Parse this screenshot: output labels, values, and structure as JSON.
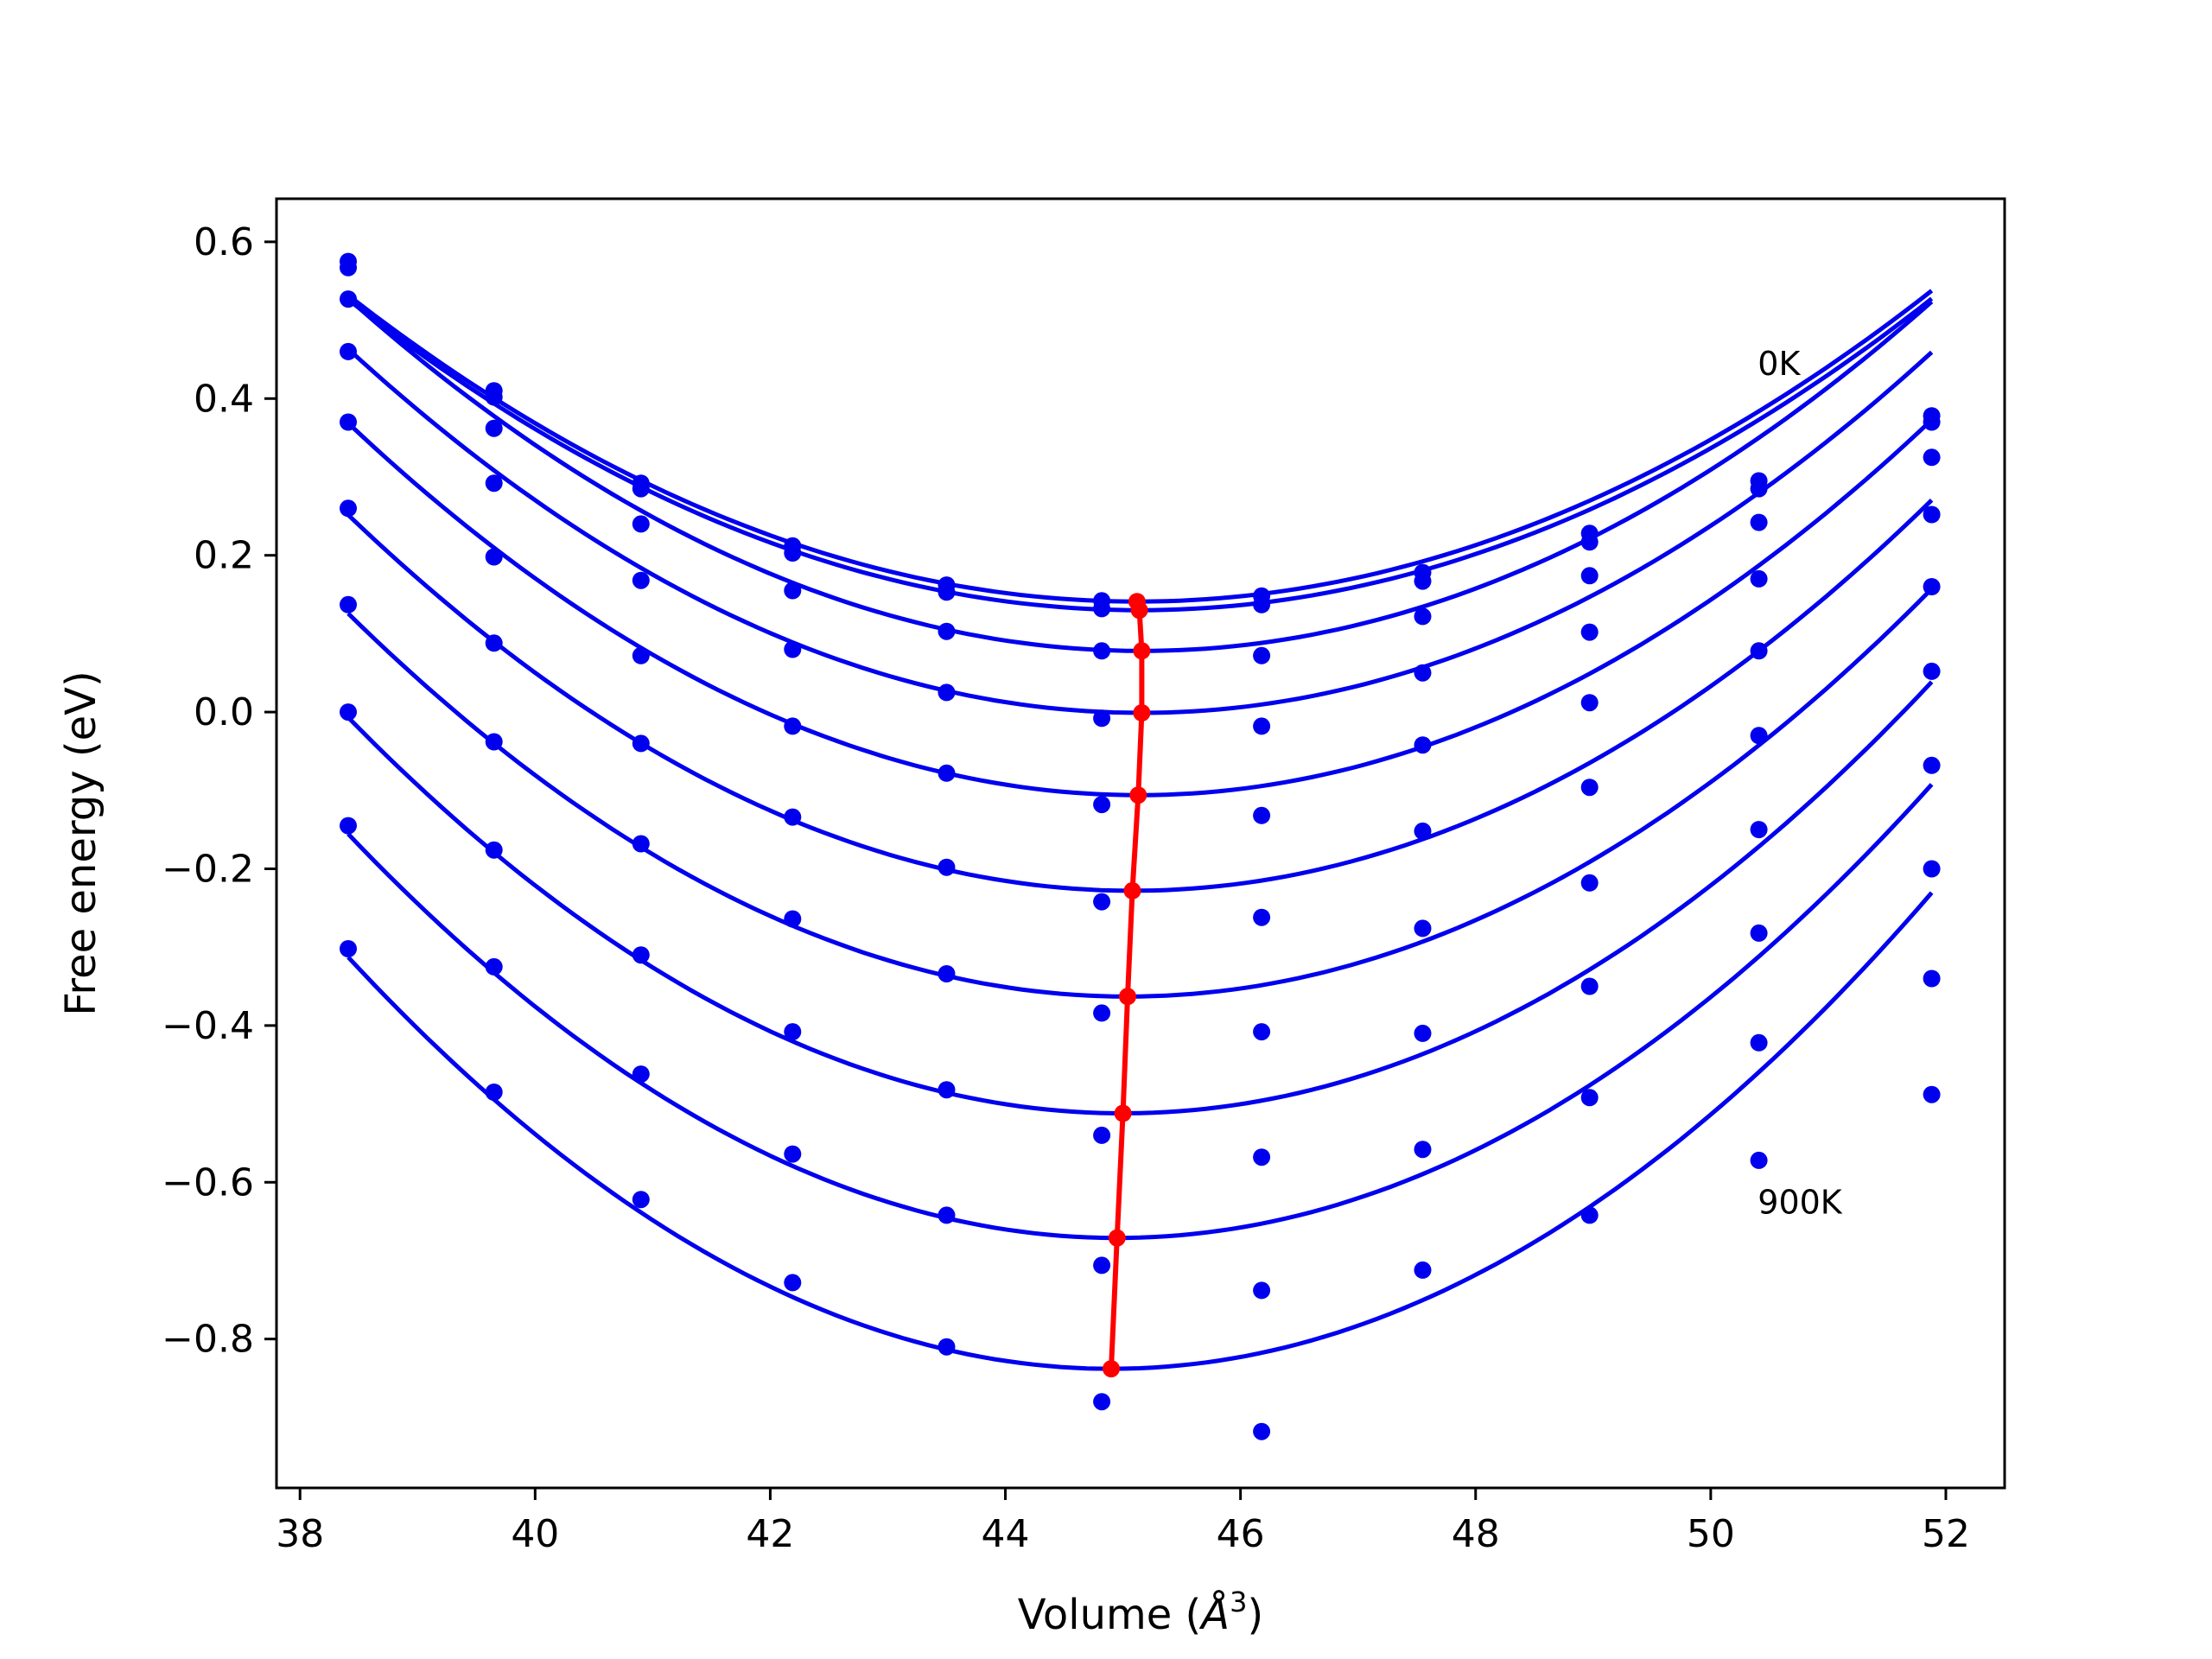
{
  "chart_data": {
    "type": "line",
    "title": "",
    "xlabel_text": "Volume (",
    "xlabel_symbol": "Å",
    "xlabel_sup": "3",
    "xlabel_close": ")",
    "ylabel": "Free energy (eV)",
    "xlim": [
      37.8,
      52.5
    ],
    "ylim": [
      -0.99,
      0.655
    ],
    "xticks": [
      38,
      40,
      42,
      44,
      46,
      48,
      50,
      52
    ],
    "xtick_labels": [
      "38",
      "40",
      "42",
      "44",
      "46",
      "48",
      "50",
      "52"
    ],
    "yticks": [
      -0.8,
      -0.6,
      -0.4,
      -0.2,
      0.0,
      0.2,
      0.4,
      0.6
    ],
    "ytick_labels": [
      "−0.8",
      "−0.6",
      "−0.4",
      "−0.2",
      "0.0",
      "0.2",
      "0.4",
      "0.6"
    ],
    "grid": false,
    "annotations": [
      {
        "text": "0K",
        "x": 50.4,
        "y": 0.43
      },
      {
        "text": "900K",
        "x": 50.4,
        "y": -0.64
      }
    ],
    "curve_color": "#0000ee",
    "point_color": "#0000ee",
    "minimum_color": "#ff0000",
    "volumes": [
      38.41,
      39.65,
      40.9,
      42.19,
      43.5,
      44.82,
      46.18,
      47.55,
      48.97,
      50.41,
      51.88
    ],
    "curves": [
      {
        "v0": 45.12,
        "f0": 0.141,
        "a": 0.00868,
        "x_start": 38.41,
        "x_end": 51.88
      },
      {
        "v0": 45.14,
        "f0": 0.13,
        "a": 0.00875,
        "x_start": 38.41,
        "x_end": 51.88
      },
      {
        "v0": 45.16,
        "f0": 0.078,
        "a": 0.00987,
        "x_start": 38.41,
        "x_end": 51.88
      },
      {
        "v0": 45.16,
        "f0": -0.001,
        "a": 0.01019,
        "x_start": 38.41,
        "x_end": 51.88
      },
      {
        "v0": 45.13,
        "f0": -0.106,
        "a": 0.01051,
        "x_start": 38.41,
        "x_end": 51.88
      },
      {
        "v0": 45.08,
        "f0": -0.228,
        "a": 0.01078,
        "x_start": 38.41,
        "x_end": 51.88
      },
      {
        "v0": 45.04,
        "f0": -0.363,
        "a": 0.01112,
        "x_start": 38.41,
        "x_end": 51.88
      },
      {
        "v0": 45.0,
        "f0": -0.512,
        "a": 0.01163,
        "x_start": 38.41,
        "x_end": 51.88
      },
      {
        "v0": 44.95,
        "f0": -0.671,
        "a": 0.01205,
        "x_start": 38.41,
        "x_end": 51.88
      },
      {
        "v0": 44.9,
        "f0": -0.838,
        "a": 0.01247,
        "x_start": 38.41,
        "x_end": 51.88
      }
    ],
    "series": [
      {
        "values": [
          0.575,
          0.41,
          0.292,
          0.212,
          0.162,
          0.142,
          0.148,
          0.178,
          0.228,
          0.295,
          0.378
        ]
      },
      {
        "values": [
          0.567,
          0.402,
          0.285,
          0.203,
          0.153,
          0.132,
          0.137,
          0.167,
          0.217,
          0.285,
          0.37
        ]
      },
      {
        "values": [
          0.527,
          0.362,
          0.24,
          0.155,
          0.103,
          0.078,
          0.072,
          0.122,
          0.174,
          0.242,
          0.325
        ]
      },
      {
        "values": [
          0.46,
          0.292,
          0.168,
          0.08,
          0.025,
          -0.008,
          -0.018,
          0.05,
          0.102,
          0.17,
          0.252
        ]
      },
      {
        "values": [
          0.37,
          0.198,
          0.072,
          -0.018,
          -0.078,
          -0.118,
          -0.132,
          -0.042,
          0.012,
          0.078,
          0.16
        ]
      },
      {
        "values": [
          0.26,
          0.088,
          -0.04,
          -0.134,
          -0.198,
          -0.242,
          -0.262,
          -0.152,
          -0.096,
          -0.03,
          0.052
        ]
      },
      {
        "values": [
          0.137,
          -0.038,
          -0.168,
          -0.264,
          -0.334,
          -0.384,
          -0.408,
          -0.276,
          -0.218,
          -0.15,
          -0.068
        ]
      },
      {
        "values": [
          0.0,
          -0.176,
          -0.31,
          -0.408,
          -0.482,
          -0.54,
          -0.568,
          -0.41,
          -0.35,
          -0.282,
          -0.2
        ]
      },
      {
        "values": [
          -0.145,
          -0.325,
          -0.462,
          -0.564,
          -0.642,
          -0.706,
          -0.738,
          -0.558,
          -0.492,
          -0.422,
          -0.34
        ]
      },
      {
        "values": [
          -0.302,
          -0.485,
          -0.622,
          -0.728,
          -0.81,
          -0.88,
          -0.918,
          -0.712,
          -0.642,
          -0.572,
          -0.488
        ]
      }
    ],
    "minima": {
      "x": [
        45.12,
        45.14,
        45.16,
        45.16,
        45.13,
        45.08,
        45.04,
        45.0,
        44.95,
        44.9
      ],
      "y": [
        0.141,
        0.13,
        0.078,
        -0.001,
        -0.106,
        -0.228,
        -0.363,
        -0.512,
        -0.671,
        -0.838
      ]
    }
  }
}
